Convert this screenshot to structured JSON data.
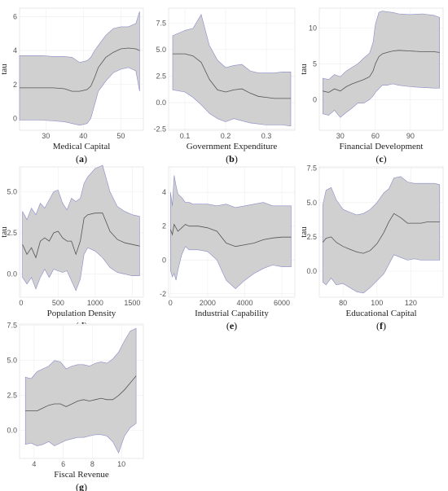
{
  "figure": {
    "panel_letters": [
      "a",
      "b",
      "c",
      "d",
      "e",
      "f",
      "g"
    ]
  },
  "chart_data": [
    {
      "type": "area",
      "panel": "a",
      "title": "",
      "xlabel": "Medical Capital",
      "ylabel": "tau",
      "xlim": [
        23,
        56
      ],
      "ylim": [
        -0.7,
        6.5
      ],
      "xticks": [
        30,
        40,
        50
      ],
      "yticks": [
        0,
        2,
        4,
        6
      ],
      "grid": true,
      "x": [
        23,
        26,
        29,
        32,
        35,
        37,
        39,
        41,
        42,
        43,
        44,
        46,
        48,
        50,
        52,
        54,
        55
      ],
      "series": [
        {
          "name": "",
          "role": "mean",
          "values": [
            1.8,
            1.8,
            1.8,
            1.8,
            1.75,
            1.6,
            1.6,
            1.7,
            1.9,
            2.4,
            3.0,
            3.6,
            3.9,
            4.1,
            4.15,
            4.1,
            4.0
          ]
        },
        {
          "name": "",
          "role": "upper",
          "values": [
            3.7,
            3.7,
            3.7,
            3.65,
            3.65,
            3.6,
            3.3,
            3.4,
            3.6,
            4.0,
            4.3,
            4.9,
            5.3,
            5.4,
            5.4,
            5.6,
            6.3
          ]
        },
        {
          "name": "",
          "role": "lower",
          "values": [
            -0.1,
            -0.1,
            -0.1,
            -0.15,
            -0.2,
            -0.3,
            -0.4,
            -0.3,
            0.0,
            0.8,
            1.6,
            2.2,
            2.7,
            2.9,
            3.0,
            2.8,
            1.6
          ]
        }
      ]
    },
    {
      "type": "area",
      "panel": "b",
      "title": "",
      "xlabel": "Government Expenditure",
      "ylabel": "",
      "xlim": [
        0.06,
        0.37
      ],
      "ylim": [
        -2.6,
        8.9
      ],
      "xticks": [
        0.1,
        0.2,
        0.3
      ],
      "yticks": [
        -2.5,
        0.0,
        2.5,
        5.0,
        7.5
      ],
      "grid": true,
      "x": [
        0.07,
        0.1,
        0.12,
        0.14,
        0.16,
        0.18,
        0.2,
        0.22,
        0.24,
        0.26,
        0.28,
        0.3,
        0.32,
        0.34,
        0.36
      ],
      "series": [
        {
          "name": "",
          "role": "mean",
          "values": [
            4.6,
            4.6,
            4.4,
            3.8,
            2.2,
            1.2,
            1.0,
            1.2,
            1.3,
            0.9,
            0.6,
            0.5,
            0.4,
            0.4,
            0.4
          ]
        },
        {
          "name": "",
          "role": "upper",
          "values": [
            6.3,
            6.8,
            7.0,
            8.3,
            5.4,
            4.0,
            3.3,
            3.5,
            3.6,
            3.0,
            2.8,
            2.8,
            2.8,
            2.9,
            2.9
          ]
        },
        {
          "name": "",
          "role": "lower",
          "values": [
            1.2,
            1.0,
            0.5,
            -0.2,
            -1.0,
            -1.5,
            -1.8,
            -1.5,
            -1.7,
            -1.9,
            -2.0,
            -2.1,
            -2.1,
            -2.1,
            -2.2
          ]
        }
      ]
    },
    {
      "type": "area",
      "panel": "c",
      "title": "",
      "xlabel": "Financial Development",
      "ylabel": "tau",
      "xlim": [
        12,
        118
      ],
      "ylim": [
        -4.3,
        12.8
      ],
      "xticks": [
        30,
        60,
        90
      ],
      "yticks": [
        0,
        5,
        10
      ],
      "grid": true,
      "x": [
        15,
        20,
        25,
        30,
        35,
        40,
        45,
        50,
        55,
        58,
        60,
        63,
        66,
        70,
        75,
        80,
        90,
        100,
        110,
        115
      ],
      "series": [
        {
          "name": "",
          "role": "mean",
          "values": [
            1.2,
            1.0,
            1.5,
            1.2,
            1.8,
            2.2,
            2.5,
            2.8,
            3.2,
            4.0,
            5.0,
            6.0,
            6.4,
            6.6,
            6.8,
            6.9,
            6.8,
            6.7,
            6.7,
            6.6
          ]
        },
        {
          "name": "",
          "role": "upper",
          "values": [
            3.0,
            2.8,
            3.5,
            3.2,
            4.0,
            4.5,
            5.0,
            5.8,
            6.5,
            8.0,
            10.5,
            12.2,
            12.4,
            12.3,
            12.2,
            12.0,
            11.9,
            12.0,
            11.8,
            11.5
          ]
        },
        {
          "name": "",
          "role": "lower",
          "values": [
            -2.0,
            -2.2,
            -1.5,
            -2.5,
            -1.8,
            -1.2,
            -0.5,
            -0.5,
            0.0,
            0.5,
            1.0,
            1.5,
            2.0,
            2.0,
            2.2,
            2.0,
            1.8,
            1.7,
            1.6,
            1.6
          ]
        }
      ]
    },
    {
      "type": "area",
      "panel": "d",
      "title": "",
      "xlabel": "Population Density",
      "ylabel": "tau",
      "xlim": [
        -20,
        1650
      ],
      "ylim": [
        -1.4,
        6.5
      ],
      "xticks": [
        0,
        500,
        1000,
        1500
      ],
      "yticks": [
        0.0,
        2.5,
        5.0
      ],
      "grid": true,
      "x": [
        20,
        80,
        140,
        200,
        260,
        320,
        380,
        440,
        500,
        560,
        620,
        680,
        740,
        800,
        850,
        900,
        1000,
        1100,
        1200,
        1300,
        1400,
        1500,
        1600
      ],
      "series": [
        {
          "name": "",
          "role": "mean",
          "values": [
            1.8,
            1.2,
            1.6,
            1.0,
            2.0,
            2.2,
            2.0,
            2.5,
            2.6,
            2.2,
            2.0,
            2.0,
            1.2,
            2.0,
            3.4,
            3.6,
            3.7,
            3.7,
            2.6,
            2.1,
            1.9,
            1.8,
            1.7
          ]
        },
        {
          "name": "",
          "role": "upper",
          "values": [
            3.8,
            3.3,
            4.0,
            3.6,
            4.3,
            4.0,
            4.5,
            5.0,
            5.1,
            4.3,
            3.9,
            4.6,
            4.4,
            4.6,
            5.5,
            5.9,
            6.4,
            6.6,
            5.0,
            4.1,
            3.8,
            3.6,
            3.5
          ]
        },
        {
          "name": "",
          "role": "lower",
          "values": [
            -0.2,
            -0.6,
            -0.2,
            -0.9,
            -0.2,
            0.3,
            -0.2,
            0.3,
            0.2,
            0.1,
            0.2,
            -0.4,
            -1.0,
            -0.3,
            1.2,
            1.6,
            1.4,
            1.0,
            0.4,
            0.1,
            0.0,
            -0.1,
            -0.1
          ]
        }
      ]
    },
    {
      "type": "area",
      "panel": "e",
      "title": "",
      "xlabel": "Industrial Capability",
      "ylabel": "",
      "xlim": [
        -100,
        6700
      ],
      "ylim": [
        -2.2,
        5.5
      ],
      "xticks": [
        0,
        2000,
        4000,
        6000
      ],
      "yticks": [
        -2,
        0,
        2,
        4
      ],
      "grid": true,
      "x": [
        0,
        100,
        200,
        300,
        400,
        600,
        800,
        1000,
        1200,
        1500,
        2000,
        2500,
        3000,
        3500,
        4000,
        4500,
        5000,
        5500,
        6000,
        6500
      ],
      "series": [
        {
          "name": "",
          "role": "mean",
          "values": [
            1.8,
            1.5,
            2.1,
            1.9,
            1.7,
            1.9,
            2.1,
            2.0,
            2.0,
            2.0,
            1.9,
            1.7,
            1.0,
            0.8,
            0.9,
            1.0,
            1.2,
            1.3,
            1.35,
            1.35
          ]
        },
        {
          "name": "",
          "role": "upper",
          "values": [
            4.0,
            3.2,
            5.0,
            4.4,
            3.9,
            3.7,
            3.4,
            3.4,
            3.3,
            3.3,
            3.3,
            3.2,
            3.3,
            3.1,
            3.2,
            3.3,
            3.4,
            3.2,
            3.2,
            3.2
          ]
        },
        {
          "name": "",
          "role": "lower",
          "values": [
            -0.6,
            -1.0,
            -0.8,
            -1.2,
            -0.6,
            0.3,
            0.8,
            0.6,
            0.6,
            0.6,
            0.5,
            0.0,
            -1.2,
            -1.7,
            -1.2,
            -0.8,
            -0.5,
            -0.3,
            -0.4,
            -0.4
          ]
        }
      ]
    },
    {
      "type": "area",
      "panel": "f",
      "title": "",
      "xlabel": "Educational Capital",
      "ylabel": "tau",
      "xlim": [
        66,
        139
      ],
      "ylim": [
        -1.9,
        7.6
      ],
      "xticks": [
        80,
        100,
        120
      ],
      "yticks": [
        0.0,
        2.5,
        5.0,
        7.5
      ],
      "grid": true,
      "x": [
        68,
        70,
        73,
        76,
        80,
        84,
        88,
        92,
        96,
        100,
        104,
        107,
        110,
        114,
        118,
        122,
        126,
        130,
        134,
        137
      ],
      "series": [
        {
          "name": "",
          "role": "mean",
          "values": [
            2.1,
            2.4,
            2.5,
            2.1,
            1.8,
            1.6,
            1.4,
            1.3,
            1.5,
            2.0,
            2.8,
            3.6,
            4.2,
            3.9,
            3.5,
            3.5,
            3.5,
            3.6,
            3.6,
            3.6
          ]
        },
        {
          "name": "",
          "role": "upper",
          "values": [
            4.8,
            5.9,
            6.1,
            5.2,
            4.5,
            4.3,
            4.1,
            4.2,
            4.5,
            5.0,
            5.7,
            6.0,
            6.8,
            6.9,
            6.5,
            6.4,
            6.4,
            6.4,
            6.4,
            6.3
          ]
        },
        {
          "name": "",
          "role": "lower",
          "values": [
            -0.8,
            -1.0,
            -0.5,
            -1.0,
            -0.9,
            -1.2,
            -1.5,
            -1.6,
            -1.2,
            -0.7,
            -0.2,
            0.5,
            1.2,
            1.0,
            0.8,
            0.9,
            0.8,
            0.8,
            0.8,
            0.8
          ]
        }
      ]
    },
    {
      "type": "area",
      "panel": "g",
      "title": "",
      "xlabel": "Fiscal Revenue",
      "ylabel": "",
      "xlim": [
        3.0,
        11.5
      ],
      "ylim": [
        -2.0,
        7.6
      ],
      "xticks": [
        4,
        6,
        8,
        10
      ],
      "yticks": [
        0.0,
        2.5,
        5.0,
        7.5
      ],
      "grid": true,
      "x": [
        3.4,
        3.8,
        4.2,
        4.6,
        5.0,
        5.4,
        5.8,
        6.2,
        6.6,
        7.0,
        7.4,
        7.8,
        8.2,
        8.6,
        9.0,
        9.4,
        9.8,
        10.2,
        10.6,
        11.0
      ],
      "series": [
        {
          "name": "",
          "role": "mean",
          "values": [
            1.4,
            1.4,
            1.4,
            1.6,
            1.8,
            1.9,
            1.9,
            1.7,
            1.9,
            2.1,
            2.2,
            2.1,
            2.2,
            2.3,
            2.2,
            2.2,
            2.5,
            2.9,
            3.4,
            3.9
          ]
        },
        {
          "name": "",
          "role": "upper",
          "values": [
            3.8,
            3.7,
            4.2,
            4.4,
            4.6,
            5.0,
            4.9,
            4.4,
            4.6,
            4.7,
            4.7,
            4.6,
            4.8,
            4.9,
            4.8,
            5.1,
            5.6,
            6.4,
            7.1,
            7.3
          ]
        },
        {
          "name": "",
          "role": "lower",
          "values": [
            -1.0,
            -0.9,
            -1.1,
            -1.0,
            -0.8,
            -1.1,
            -0.9,
            -0.7,
            -0.6,
            -0.5,
            -0.5,
            -0.4,
            -0.3,
            -0.3,
            -0.4,
            -0.8,
            -1.6,
            -0.4,
            0.2,
            0.5
          ]
        }
      ]
    }
  ]
}
